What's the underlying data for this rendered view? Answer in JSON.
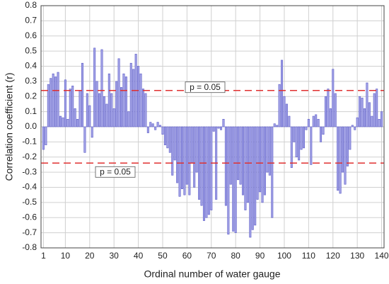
{
  "chart_data": {
    "type": "bar",
    "xlabel": "Ordinal number of water gauge",
    "ylabel": "Correlation coefficient (r)",
    "x": [
      1,
      2,
      3,
      4,
      5,
      6,
      7,
      8,
      9,
      10,
      11,
      12,
      13,
      14,
      15,
      16,
      17,
      18,
      19,
      20,
      21,
      22,
      23,
      24,
      25,
      26,
      27,
      28,
      29,
      30,
      31,
      32,
      33,
      34,
      35,
      36,
      37,
      38,
      39,
      40,
      41,
      42,
      43,
      44,
      45,
      46,
      47,
      48,
      49,
      50,
      51,
      52,
      53,
      54,
      55,
      56,
      57,
      58,
      59,
      60,
      61,
      62,
      63,
      64,
      65,
      66,
      67,
      68,
      69,
      70,
      71,
      72,
      73,
      74,
      75,
      76,
      77,
      78,
      79,
      80,
      81,
      82,
      83,
      84,
      85,
      86,
      87,
      88,
      89,
      90,
      91,
      92,
      93,
      94,
      95,
      96,
      97,
      98,
      99,
      100,
      101,
      102,
      103,
      104,
      105,
      106,
      107,
      108,
      109,
      110,
      111,
      112,
      113,
      114,
      115,
      116,
      117,
      118,
      119,
      120,
      121,
      122,
      123,
      124,
      125,
      126,
      127,
      128,
      129,
      130,
      131,
      132,
      133,
      134,
      135,
      136,
      137,
      138,
      139,
      140
    ],
    "values": [
      -0.15,
      -0.12,
      0.28,
      0.32,
      0.35,
      0.33,
      0.36,
      0.07,
      0.06,
      0.31,
      0.05,
      0.25,
      0.27,
      0.12,
      0.05,
      0.24,
      0.42,
      -0.17,
      0.22,
      0.14,
      -0.07,
      0.52,
      0.3,
      0.22,
      0.51,
      0.2,
      0.15,
      0.35,
      0.22,
      0.12,
      0.3,
      0.45,
      0.26,
      0.35,
      0.33,
      0.1,
      0.42,
      0.38,
      0.48,
      0.4,
      0.35,
      0.25,
      0.22,
      -0.04,
      0.03,
      0.02,
      -0.02,
      0.03,
      0.01,
      -0.05,
      -0.12,
      -0.14,
      -0.17,
      -0.32,
      -0.22,
      -0.37,
      -0.46,
      -0.41,
      -0.45,
      -0.38,
      -0.45,
      -0.24,
      -0.4,
      -0.3,
      -0.48,
      -0.52,
      -0.62,
      -0.6,
      -0.58,
      -0.55,
      -0.03,
      -0.48,
      -0.01,
      -0.02,
      0.05,
      -0.52,
      -0.71,
      -0.38,
      -0.69,
      -0.7,
      -0.35,
      -0.38,
      -0.45,
      -0.55,
      -0.5,
      -0.73,
      -0.68,
      -0.65,
      -0.48,
      -0.43,
      -0.5,
      -0.45,
      -0.3,
      -0.32,
      -0.6,
      0.02,
      0.01,
      0.28,
      0.44,
      0.2,
      0.15,
      0.07,
      -0.27,
      -0.1,
      -0.2,
      -0.22,
      -0.15,
      -0.14,
      -0.02,
      0.05,
      -0.25,
      0.07,
      0.08,
      0.05,
      -0.1,
      -0.05,
      0.2,
      0.25,
      0.12,
      0.38,
      0.22,
      -0.42,
      -0.44,
      -0.3,
      -0.38,
      -0.26,
      -0.15,
      0.01,
      -0.02,
      0.06,
      0.2,
      0.19,
      0.12,
      0.29,
      0.16,
      0.07,
      0.22,
      0.25,
      0.05,
      0.1
    ],
    "color": "#a3a3e6",
    "edgecolor": "#5a5ac8",
    "xlim": [
      0,
      141
    ],
    "xticks": [
      1,
      10,
      20,
      30,
      40,
      50,
      60,
      70,
      80,
      90,
      100,
      110,
      120,
      130,
      140
    ],
    "ylim": [
      -0.8,
      0.8
    ],
    "yticks": [
      -0.8,
      -0.7,
      -0.6,
      -0.5,
      -0.4,
      -0.3,
      -0.2,
      -0.1,
      {
        "value": 0,
        "label": "0.0"
      },
      0.1,
      0.2,
      0.3,
      0.4,
      0.5,
      0.6,
      0.7,
      0.8
    ],
    "grid": true,
    "hlines": [
      {
        "value": 0.24,
        "label": "p = 0.05",
        "color": "#e03030"
      },
      {
        "value": -0.24,
        "label": "p = 0.05",
        "color": "#e03030"
      }
    ]
  }
}
